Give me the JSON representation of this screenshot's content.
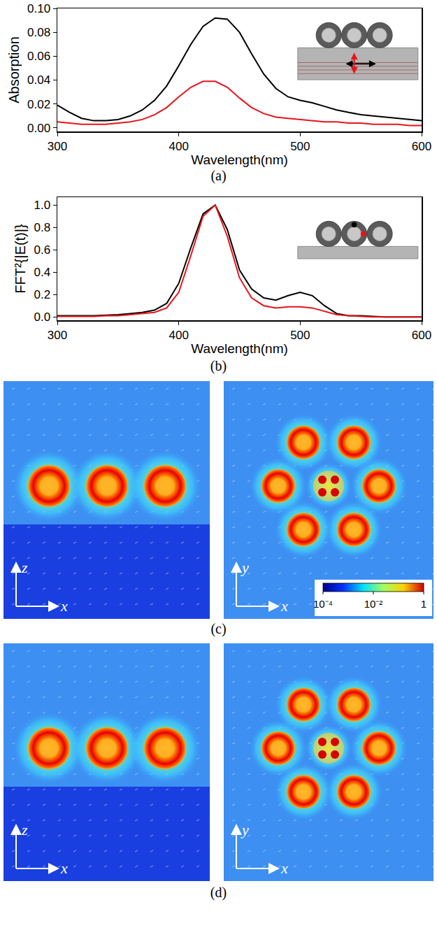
{
  "chart_data": [
    {
      "type": "line",
      "caption": "(a)",
      "x_label": "Wavelength(nm)",
      "y_label": "Absorption",
      "x": [
        300,
        310,
        320,
        330,
        340,
        350,
        360,
        370,
        380,
        390,
        400,
        410,
        420,
        430,
        440,
        450,
        460,
        470,
        480,
        490,
        500,
        510,
        520,
        530,
        540,
        550,
        560,
        570,
        580,
        590,
        600
      ],
      "series": [
        {
          "color": "#000000",
          "values": [
            0.019,
            0.013,
            0.008,
            0.006,
            0.006,
            0.007,
            0.01,
            0.015,
            0.023,
            0.035,
            0.052,
            0.07,
            0.085,
            0.092,
            0.091,
            0.08,
            0.062,
            0.045,
            0.033,
            0.026,
            0.023,
            0.021,
            0.018,
            0.015,
            0.013,
            0.011,
            0.01,
            0.009,
            0.008,
            0.007,
            0.006
          ]
        },
        {
          "color": "#e8141c",
          "values": [
            0.005,
            0.004,
            0.003,
            0.003,
            0.003,
            0.004,
            0.005,
            0.007,
            0.011,
            0.017,
            0.026,
            0.034,
            0.039,
            0.039,
            0.034,
            0.025,
            0.017,
            0.012,
            0.009,
            0.008,
            0.007,
            0.006,
            0.005,
            0.005,
            0.004,
            0.004,
            0.003,
            0.003,
            0.003,
            0.002,
            0.002
          ]
        }
      ],
      "xlim": [
        300,
        600
      ],
      "xticks": [
        300,
        400,
        500,
        600
      ],
      "ylim": [
        -0.003,
        0.1
      ],
      "yticks": [
        {
          "value": 0,
          "label": "0.00"
        },
        {
          "value": 0.02,
          "label": "0.02"
        },
        {
          "value": 0.04,
          "label": "0.04"
        },
        {
          "value": 0.06,
          "label": "0.06"
        },
        {
          "value": 0.08,
          "label": "0.08"
        },
        {
          "value": 0.1,
          "label": "0.10"
        }
      ],
      "grid": false
    },
    {
      "type": "line",
      "caption": "(b)",
      "x_label": "Wavelength(nm)",
      "y_label": "FFT²{|E(t)|}",
      "x": [
        300,
        310,
        320,
        330,
        340,
        350,
        360,
        370,
        380,
        390,
        400,
        410,
        420,
        430,
        440,
        450,
        460,
        470,
        480,
        490,
        500,
        510,
        520,
        530,
        540,
        550,
        560,
        570,
        580,
        590,
        600
      ],
      "series": [
        {
          "color": "#000000",
          "values": [
            0.01,
            0.01,
            0.01,
            0.01,
            0.015,
            0.02,
            0.03,
            0.04,
            0.06,
            0.12,
            0.3,
            0.62,
            0.92,
            1.0,
            0.78,
            0.42,
            0.25,
            0.17,
            0.15,
            0.19,
            0.22,
            0.19,
            0.1,
            0.03,
            0.01,
            0.01,
            0.005,
            0,
            0,
            0,
            0
          ]
        },
        {
          "color": "#e8141c",
          "values": [
            0.005,
            0.005,
            0.005,
            0.005,
            0.01,
            0.01,
            0.02,
            0.03,
            0.04,
            0.08,
            0.22,
            0.55,
            0.9,
            1.0,
            0.72,
            0.35,
            0.17,
            0.1,
            0.08,
            0.09,
            0.09,
            0.08,
            0.05,
            0.02,
            0.01,
            0.005,
            0,
            0,
            0,
            0,
            0
          ]
        }
      ],
      "xlim": [
        300,
        600
      ],
      "xticks": [
        300,
        400,
        500,
        600
      ],
      "ylim": [
        -0.03,
        1.07
      ],
      "yticks": [
        {
          "value": 0,
          "label": "0.0"
        },
        {
          "value": 0.2,
          "label": "0.2"
        },
        {
          "value": 0.4,
          "label": "0.4"
        },
        {
          "value": 0.6,
          "label": "0.6"
        },
        {
          "value": 0.8,
          "label": "0.8"
        },
        {
          "value": 1,
          "label": "1.0"
        }
      ],
      "grid": false
    }
  ],
  "field_maps": [
    {
      "caption": "(c)",
      "views": [
        {
          "vertical": "z",
          "horizontal": "x"
        },
        {
          "vertical": "y",
          "horizontal": "x"
        }
      ],
      "colorbar": {
        "range": [
          0.0001,
          1
        ],
        "log": true,
        "ticks": [
          {
            "value": 0.0001,
            "label": "10⁻⁴"
          },
          {
            "value": 0.01,
            "label": "10⁻²"
          },
          1
        ]
      }
    },
    {
      "caption": "(d)",
      "views": [
        {
          "vertical": "z",
          "horizontal": "x"
        },
        {
          "vertical": "y",
          "horizontal": "x"
        }
      ]
    }
  ]
}
